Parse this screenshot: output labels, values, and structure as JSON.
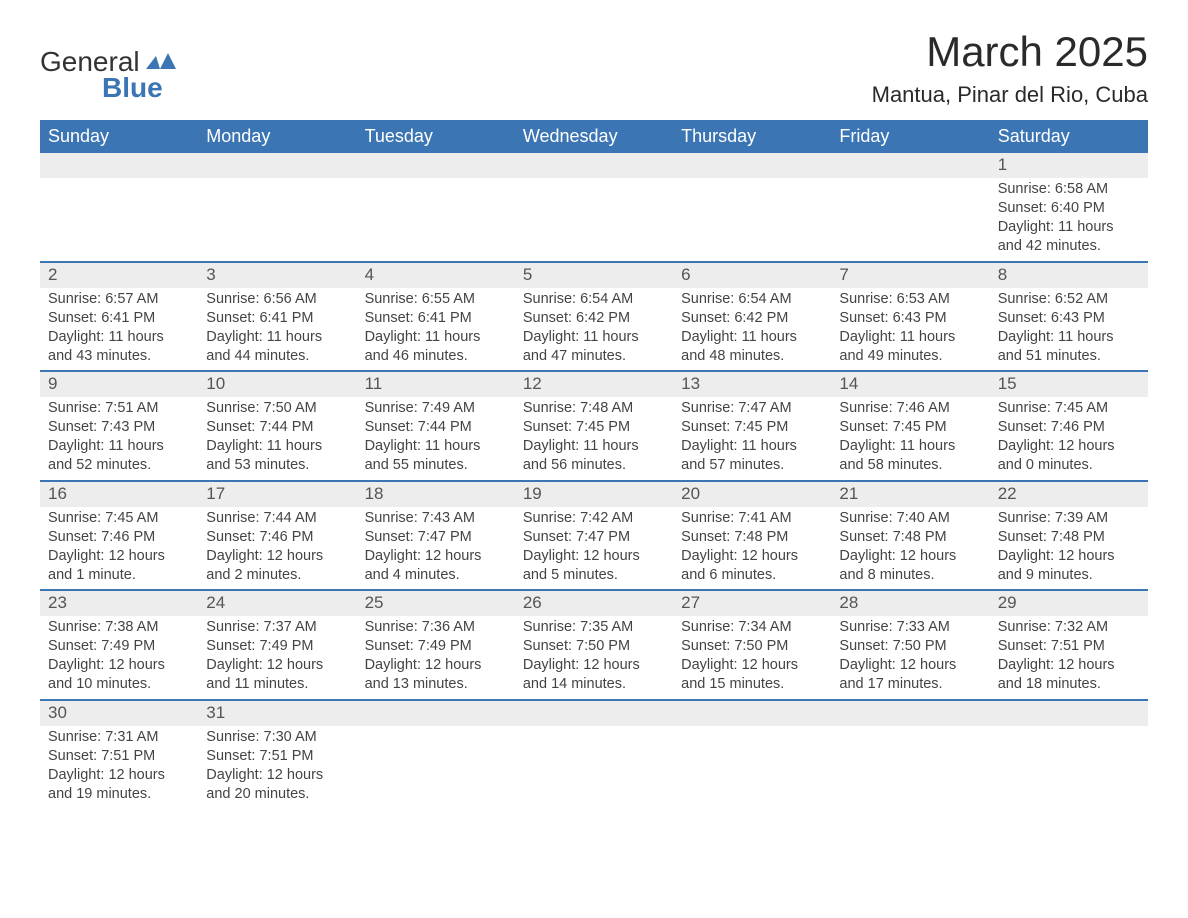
{
  "logo": {
    "text1": "General",
    "text2": "Blue",
    "accent_color": "#3b75b3"
  },
  "title": "March 2025",
  "location": "Mantua, Pinar del Rio, Cuba",
  "colors": {
    "header_bg": "#3b75b3",
    "header_text": "#ffffff",
    "daynum_bg": "#ededed",
    "row_divider": "#3b75b3",
    "body_text": "#444444"
  },
  "typography": {
    "title_fontsize": 42,
    "location_fontsize": 22,
    "header_fontsize": 18,
    "daynum_fontsize": 17,
    "cell_fontsize": 14.5
  },
  "columns": [
    "Sunday",
    "Monday",
    "Tuesday",
    "Wednesday",
    "Thursday",
    "Friday",
    "Saturday"
  ],
  "weeks": [
    [
      null,
      null,
      null,
      null,
      null,
      null,
      {
        "n": "1",
        "sr": "6:58 AM",
        "ss": "6:40 PM",
        "dl": "11 hours and 42 minutes."
      }
    ],
    [
      {
        "n": "2",
        "sr": "6:57 AM",
        "ss": "6:41 PM",
        "dl": "11 hours and 43 minutes."
      },
      {
        "n": "3",
        "sr": "6:56 AM",
        "ss": "6:41 PM",
        "dl": "11 hours and 44 minutes."
      },
      {
        "n": "4",
        "sr": "6:55 AM",
        "ss": "6:41 PM",
        "dl": "11 hours and 46 minutes."
      },
      {
        "n": "5",
        "sr": "6:54 AM",
        "ss": "6:42 PM",
        "dl": "11 hours and 47 minutes."
      },
      {
        "n": "6",
        "sr": "6:54 AM",
        "ss": "6:42 PM",
        "dl": "11 hours and 48 minutes."
      },
      {
        "n": "7",
        "sr": "6:53 AM",
        "ss": "6:43 PM",
        "dl": "11 hours and 49 minutes."
      },
      {
        "n": "8",
        "sr": "6:52 AM",
        "ss": "6:43 PM",
        "dl": "11 hours and 51 minutes."
      }
    ],
    [
      {
        "n": "9",
        "sr": "7:51 AM",
        "ss": "7:43 PM",
        "dl": "11 hours and 52 minutes."
      },
      {
        "n": "10",
        "sr": "7:50 AM",
        "ss": "7:44 PM",
        "dl": "11 hours and 53 minutes."
      },
      {
        "n": "11",
        "sr": "7:49 AM",
        "ss": "7:44 PM",
        "dl": "11 hours and 55 minutes."
      },
      {
        "n": "12",
        "sr": "7:48 AM",
        "ss": "7:45 PM",
        "dl": "11 hours and 56 minutes."
      },
      {
        "n": "13",
        "sr": "7:47 AM",
        "ss": "7:45 PM",
        "dl": "11 hours and 57 minutes."
      },
      {
        "n": "14",
        "sr": "7:46 AM",
        "ss": "7:45 PM",
        "dl": "11 hours and 58 minutes."
      },
      {
        "n": "15",
        "sr": "7:45 AM",
        "ss": "7:46 PM",
        "dl": "12 hours and 0 minutes."
      }
    ],
    [
      {
        "n": "16",
        "sr": "7:45 AM",
        "ss": "7:46 PM",
        "dl": "12 hours and 1 minute."
      },
      {
        "n": "17",
        "sr": "7:44 AM",
        "ss": "7:46 PM",
        "dl": "12 hours and 2 minutes."
      },
      {
        "n": "18",
        "sr": "7:43 AM",
        "ss": "7:47 PM",
        "dl": "12 hours and 4 minutes."
      },
      {
        "n": "19",
        "sr": "7:42 AM",
        "ss": "7:47 PM",
        "dl": "12 hours and 5 minutes."
      },
      {
        "n": "20",
        "sr": "7:41 AM",
        "ss": "7:48 PM",
        "dl": "12 hours and 6 minutes."
      },
      {
        "n": "21",
        "sr": "7:40 AM",
        "ss": "7:48 PM",
        "dl": "12 hours and 8 minutes."
      },
      {
        "n": "22",
        "sr": "7:39 AM",
        "ss": "7:48 PM",
        "dl": "12 hours and 9 minutes."
      }
    ],
    [
      {
        "n": "23",
        "sr": "7:38 AM",
        "ss": "7:49 PM",
        "dl": "12 hours and 10 minutes."
      },
      {
        "n": "24",
        "sr": "7:37 AM",
        "ss": "7:49 PM",
        "dl": "12 hours and 11 minutes."
      },
      {
        "n": "25",
        "sr": "7:36 AM",
        "ss": "7:49 PM",
        "dl": "12 hours and 13 minutes."
      },
      {
        "n": "26",
        "sr": "7:35 AM",
        "ss": "7:50 PM",
        "dl": "12 hours and 14 minutes."
      },
      {
        "n": "27",
        "sr": "7:34 AM",
        "ss": "7:50 PM",
        "dl": "12 hours and 15 minutes."
      },
      {
        "n": "28",
        "sr": "7:33 AM",
        "ss": "7:50 PM",
        "dl": "12 hours and 17 minutes."
      },
      {
        "n": "29",
        "sr": "7:32 AM",
        "ss": "7:51 PM",
        "dl": "12 hours and 18 minutes."
      }
    ],
    [
      {
        "n": "30",
        "sr": "7:31 AM",
        "ss": "7:51 PM",
        "dl": "12 hours and 19 minutes."
      },
      {
        "n": "31",
        "sr": "7:30 AM",
        "ss": "7:51 PM",
        "dl": "12 hours and 20 minutes."
      },
      null,
      null,
      null,
      null,
      null
    ]
  ],
  "labels": {
    "sunrise": "Sunrise: ",
    "sunset": "Sunset: ",
    "daylight": "Daylight: "
  }
}
